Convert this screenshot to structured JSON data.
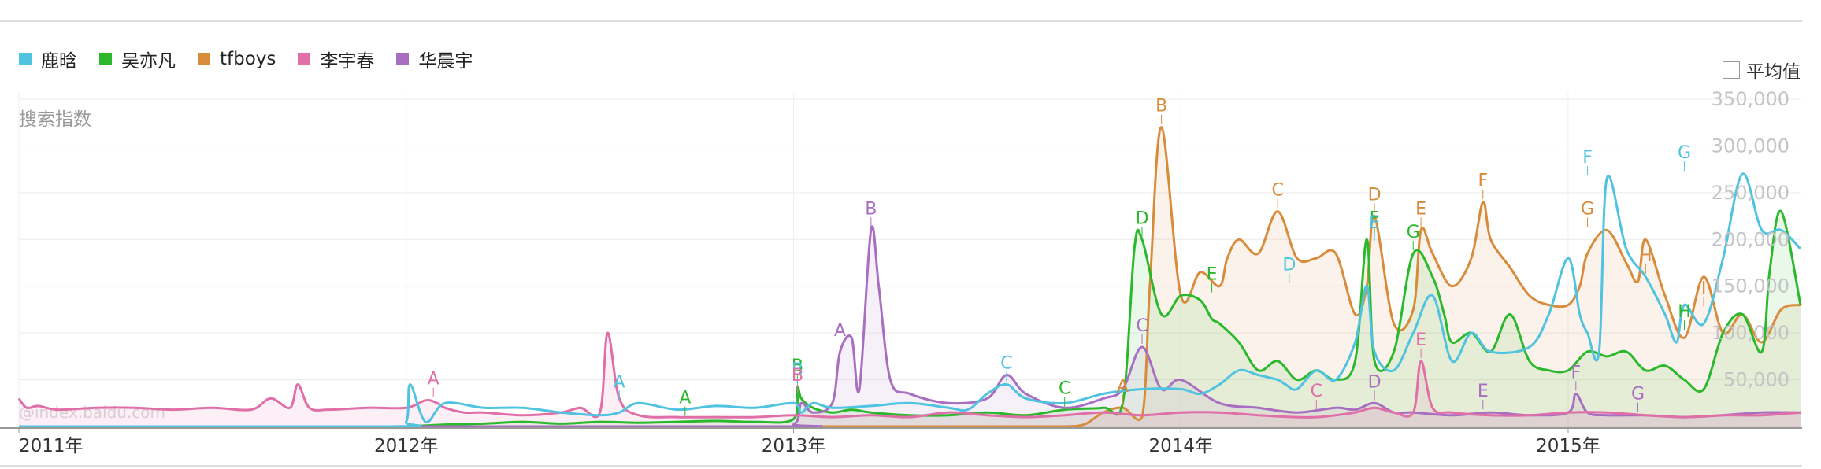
{
  "legend": {
    "average_label": "平均值",
    "y_label": "搜索指数",
    "watermark": "@index.baidu.com"
  },
  "chart_data": {
    "type": "line",
    "title": "",
    "xlabel": "",
    "ylabel": "搜索指数",
    "x_range": [
      2011.0,
      2015.6
    ],
    "ylim": [
      0,
      350000
    ],
    "y_ticks": [
      50000,
      100000,
      150000,
      200000,
      250000,
      300000,
      350000
    ],
    "y_tick_labels": [
      "50,000",
      "100,000",
      "150,000",
      "200,000",
      "250,000",
      "300,000",
      "350,000"
    ],
    "x_ticks": [
      2011,
      2012,
      2013,
      2014,
      2015
    ],
    "x_tick_labels": [
      "2011年",
      "2012年",
      "2013年",
      "2014年",
      "2015年"
    ],
    "grid": true,
    "legend_position": "top-left",
    "series": [
      {
        "name": "鹿晗",
        "color": "#4fc3e0",
        "fill": false,
        "x": [
          2011.0,
          2011.95,
          2012.0,
          2012.01,
          2012.05,
          2012.1,
          2012.2,
          2012.3,
          2012.4,
          2012.5,
          2012.55,
          2012.6,
          2012.7,
          2012.8,
          2012.9,
          2013.0,
          2013.02,
          2013.05,
          2013.1,
          2013.2,
          2013.3,
          2013.4,
          2013.45,
          2013.5,
          2013.55,
          2013.6,
          2013.7,
          2013.8,
          2013.9,
          2014.0,
          2014.05,
          2014.1,
          2014.15,
          2014.2,
          2014.25,
          2014.27,
          2014.3,
          2014.35,
          2014.4,
          2014.45,
          2014.48,
          2014.5,
          2014.55,
          2014.6,
          2014.65,
          2014.7,
          2014.75,
          2014.8,
          2014.9,
          2014.95,
          2015.0,
          2015.03,
          2015.05,
          2015.08,
          2015.1,
          2015.15,
          2015.2,
          2015.25,
          2015.28,
          2015.3,
          2015.35,
          2015.4,
          2015.45,
          2015.5,
          2015.55,
          2015.6
        ],
        "values": [
          0,
          0,
          5000,
          45000,
          5000,
          25000,
          20000,
          20000,
          15000,
          12000,
          15000,
          25000,
          18000,
          22000,
          20000,
          25000,
          15000,
          25000,
          20000,
          22000,
          25000,
          20000,
          18000,
          35000,
          45000,
          30000,
          25000,
          35000,
          40000,
          40000,
          35000,
          45000,
          60000,
          55000,
          50000,
          45000,
          40000,
          60000,
          50000,
          90000,
          150000,
          80000,
          60000,
          100000,
          140000,
          70000,
          100000,
          80000,
          85000,
          120000,
          180000,
          120000,
          100000,
          80000,
          265000,
          190000,
          160000,
          120000,
          90000,
          130000,
          110000,
          180000,
          270000,
          210000,
          210000,
          190000
        ]
      },
      {
        "name": "吴亦凡",
        "color": "#2cb82c",
        "fill": true,
        "x": [
          2011.0,
          2011.95,
          2012.0,
          2012.1,
          2012.2,
          2012.3,
          2012.4,
          2012.5,
          2012.6,
          2012.7,
          2012.8,
          2012.9,
          2013.0,
          2013.01,
          2013.02,
          2013.05,
          2013.1,
          2013.15,
          2013.2,
          2013.3,
          2013.4,
          2013.5,
          2013.6,
          2013.7,
          2013.8,
          2013.85,
          2013.88,
          2013.9,
          2013.95,
          2014.0,
          2014.05,
          2014.08,
          2014.1,
          2014.15,
          2014.2,
          2014.25,
          2014.3,
          2014.35,
          2014.4,
          2014.45,
          2014.48,
          2014.5,
          2014.55,
          2014.6,
          2014.65,
          2014.68,
          2014.7,
          2014.75,
          2014.8,
          2014.85,
          2014.9,
          2014.95,
          2015.0,
          2015.05,
          2015.1,
          2015.15,
          2015.2,
          2015.25,
          2015.3,
          2015.35,
          2015.4,
          2015.45,
          2015.5,
          2015.52,
          2015.55,
          2015.6
        ],
        "values": [
          0,
          0,
          0,
          2000,
          3000,
          5000,
          3000,
          5000,
          4000,
          5000,
          6000,
          5000,
          8000,
          42000,
          30000,
          20000,
          15000,
          18000,
          15000,
          12000,
          12000,
          15000,
          12000,
          18000,
          20000,
          25000,
          190000,
          200000,
          120000,
          140000,
          135000,
          115000,
          110000,
          90000,
          60000,
          70000,
          50000,
          60000,
          50000,
          70000,
          200000,
          70000,
          80000,
          185000,
          160000,
          120000,
          90000,
          100000,
          80000,
          120000,
          70000,
          60000,
          60000,
          80000,
          75000,
          80000,
          60000,
          65000,
          50000,
          40000,
          100000,
          120000,
          80000,
          165000,
          230000,
          130000
        ]
      },
      {
        "name": "tfboys",
        "color": "#d88c3b",
        "fill": true,
        "x": [
          2011.0,
          2013.0,
          2013.3,
          2013.5,
          2013.6,
          2013.7,
          2013.75,
          2013.8,
          2013.85,
          2013.9,
          2013.92,
          2013.95,
          2014.0,
          2014.05,
          2014.1,
          2014.12,
          2014.15,
          2014.2,
          2014.25,
          2014.3,
          2014.35,
          2014.4,
          2014.45,
          2014.48,
          2014.5,
          2014.55,
          2014.6,
          2014.62,
          2014.65,
          2014.7,
          2014.75,
          2014.78,
          2014.8,
          2014.85,
          2014.9,
          2014.95,
          2015.0,
          2015.03,
          2015.05,
          2015.1,
          2015.15,
          2015.18,
          2015.2,
          2015.25,
          2015.3,
          2015.35,
          2015.4,
          2015.45,
          2015.5,
          2015.55,
          2015.6
        ],
        "values": [
          0,
          0,
          0,
          0,
          0,
          0,
          2000,
          15000,
          20000,
          10000,
          150000,
          320000,
          140000,
          165000,
          150000,
          180000,
          200000,
          185000,
          230000,
          180000,
          180000,
          185000,
          120000,
          150000,
          225000,
          110000,
          125000,
          210000,
          185000,
          150000,
          180000,
          240000,
          200000,
          170000,
          140000,
          130000,
          130000,
          150000,
          185000,
          210000,
          175000,
          155000,
          200000,
          140000,
          95000,
          160000,
          100000,
          120000,
          90000,
          125000,
          130000
        ]
      },
      {
        "name": "李宇春",
        "color": "#e06fa8",
        "fill": true,
        "x": [
          2011.0,
          2011.02,
          2011.05,
          2011.1,
          2011.2,
          2011.3,
          2011.4,
          2011.5,
          2011.6,
          2011.65,
          2011.7,
          2011.72,
          2011.75,
          2011.8,
          2011.9,
          2012.0,
          2012.05,
          2012.08,
          2012.1,
          2012.15,
          2012.2,
          2012.3,
          2012.4,
          2012.45,
          2012.5,
          2012.52,
          2012.55,
          2012.6,
          2012.7,
          2012.8,
          2012.9,
          2013.0,
          2013.1,
          2013.2,
          2013.3,
          2013.4,
          2013.5,
          2013.6,
          2013.7,
          2013.8,
          2013.9,
          2014.0,
          2014.1,
          2014.2,
          2014.3,
          2014.35,
          2014.4,
          2014.45,
          2014.5,
          2014.55,
          2014.6,
          2014.62,
          2014.65,
          2014.7,
          2014.8,
          2014.9,
          2015.0,
          2015.1,
          2015.2,
          2015.3,
          2015.4,
          2015.5,
          2015.6
        ],
        "values": [
          30000,
          20000,
          22000,
          18000,
          20000,
          20000,
          18000,
          20000,
          18000,
          30000,
          20000,
          45000,
          20000,
          18000,
          20000,
          20000,
          28000,
          25000,
          20000,
          15000,
          15000,
          12000,
          15000,
          20000,
          15000,
          100000,
          30000,
          12000,
          10000,
          10000,
          10000,
          12000,
          10000,
          12000,
          10000,
          15000,
          12000,
          10000,
          12000,
          15000,
          12000,
          15000,
          15000,
          12000,
          10000,
          10000,
          12000,
          15000,
          20000,
          15000,
          15000,
          70000,
          20000,
          15000,
          12000,
          12000,
          15000,
          15000,
          12000,
          10000,
          12000,
          12000,
          15000
        ]
      },
      {
        "name": "华晨宇",
        "color": "#a86fc1",
        "fill": true,
        "x": [
          2011.0,
          2012.9,
          2013.0,
          2013.02,
          2013.05,
          2013.1,
          2013.12,
          2013.15,
          2013.17,
          2013.2,
          2013.22,
          2013.25,
          2013.3,
          2013.4,
          2013.5,
          2013.55,
          2013.6,
          2013.7,
          2013.8,
          2013.85,
          2013.9,
          2013.95,
          2014.0,
          2014.1,
          2014.2,
          2014.3,
          2014.4,
          2014.45,
          2014.5,
          2014.55,
          2014.6,
          2014.7,
          2014.8,
          2014.9,
          2015.0,
          2015.02,
          2015.05,
          2015.1,
          2015.2,
          2015.3,
          2015.4,
          2015.5,
          2015.6
        ],
        "values": [
          0,
          0,
          2000,
          25000,
          15000,
          25000,
          80000,
          95000,
          40000,
          210000,
          150000,
          50000,
          35000,
          25000,
          30000,
          55000,
          35000,
          20000,
          30000,
          40000,
          85000,
          40000,
          50000,
          25000,
          20000,
          15000,
          20000,
          18000,
          25000,
          15000,
          15000,
          12000,
          15000,
          12000,
          15000,
          35000,
          15000,
          12000,
          12000,
          10000,
          12000,
          15000,
          15000
        ]
      }
    ],
    "annotations": [
      {
        "series": "李宇春",
        "label": "A",
        "x": 2012.07,
        "y": 28000
      },
      {
        "series": "鹿晗",
        "label": "A",
        "x": 2012.55,
        "y": 25000
      },
      {
        "series": "吴亦凡",
        "label": "A",
        "x": 2012.72,
        "y": 8000
      },
      {
        "series": "吴亦凡",
        "label": "B",
        "x": 2013.01,
        "y": 42000
      },
      {
        "series": "鹿晗",
        "label": "B",
        "x": 2013.01,
        "y": 38000
      },
      {
        "series": "李宇春",
        "label": "B",
        "x": 2013.01,
        "y": 32000
      },
      {
        "series": "华晨宇",
        "label": "A",
        "x": 2013.12,
        "y": 80000
      },
      {
        "series": "华晨宇",
        "label": "B",
        "x": 2013.2,
        "y": 210000
      },
      {
        "series": "鹿晗",
        "label": "C",
        "x": 2013.55,
        "y": 45000
      },
      {
        "series": "吴亦凡",
        "label": "C",
        "x": 2013.7,
        "y": 18000
      },
      {
        "series": "tfboys",
        "label": "A",
        "x": 2013.85,
        "y": 20000
      },
      {
        "series": "华晨宇",
        "label": "C",
        "x": 2013.9,
        "y": 85000
      },
      {
        "series": "吴亦凡",
        "label": "D",
        "x": 2013.9,
        "y": 200000
      },
      {
        "series": "tfboys",
        "label": "B",
        "x": 2013.95,
        "y": 320000
      },
      {
        "series": "吴亦凡",
        "label": "E",
        "x": 2014.08,
        "y": 140000
      },
      {
        "series": "tfboys",
        "label": "C",
        "x": 2014.25,
        "y": 230000
      },
      {
        "series": "鹿晗",
        "label": "D",
        "x": 2014.28,
        "y": 150000
      },
      {
        "series": "李宇春",
        "label": "C",
        "x": 2014.35,
        "y": 15000
      },
      {
        "series": "tfboys",
        "label": "D",
        "x": 2014.5,
        "y": 225000
      },
      {
        "series": "吴亦凡",
        "label": "F",
        "x": 2014.5,
        "y": 200000
      },
      {
        "series": "鹿晗",
        "label": "E",
        "x": 2014.5,
        "y": 195000
      },
      {
        "series": "华晨宇",
        "label": "D",
        "x": 2014.5,
        "y": 25000
      },
      {
        "series": "吴亦凡",
        "label": "G",
        "x": 2014.6,
        "y": 185000
      },
      {
        "series": "tfboys",
        "label": "E",
        "x": 2014.62,
        "y": 210000
      },
      {
        "series": "李宇春",
        "label": "E",
        "x": 2014.62,
        "y": 70000
      },
      {
        "series": "华晨宇",
        "label": "E",
        "x": 2014.78,
        "y": 15000
      },
      {
        "series": "tfboys",
        "label": "F",
        "x": 2014.78,
        "y": 240000
      },
      {
        "series": "鹿晗",
        "label": "F",
        "x": 2015.05,
        "y": 265000
      },
      {
        "series": "tfboys",
        "label": "G",
        "x": 2015.05,
        "y": 210000
      },
      {
        "series": "华晨宇",
        "label": "F",
        "x": 2015.02,
        "y": 35000
      },
      {
        "series": "tfboys",
        "label": "H",
        "x": 2015.2,
        "y": 160000
      },
      {
        "series": "华晨宇",
        "label": "G",
        "x": 2015.18,
        "y": 12000
      },
      {
        "series": "吴亦凡",
        "label": "H",
        "x": 2015.3,
        "y": 100000
      },
      {
        "series": "鹿晗",
        "label": "G",
        "x": 2015.3,
        "y": 270000
      },
      {
        "series": "tfboys",
        "label": "I",
        "x": 2015.35,
        "y": 125000
      }
    ]
  }
}
